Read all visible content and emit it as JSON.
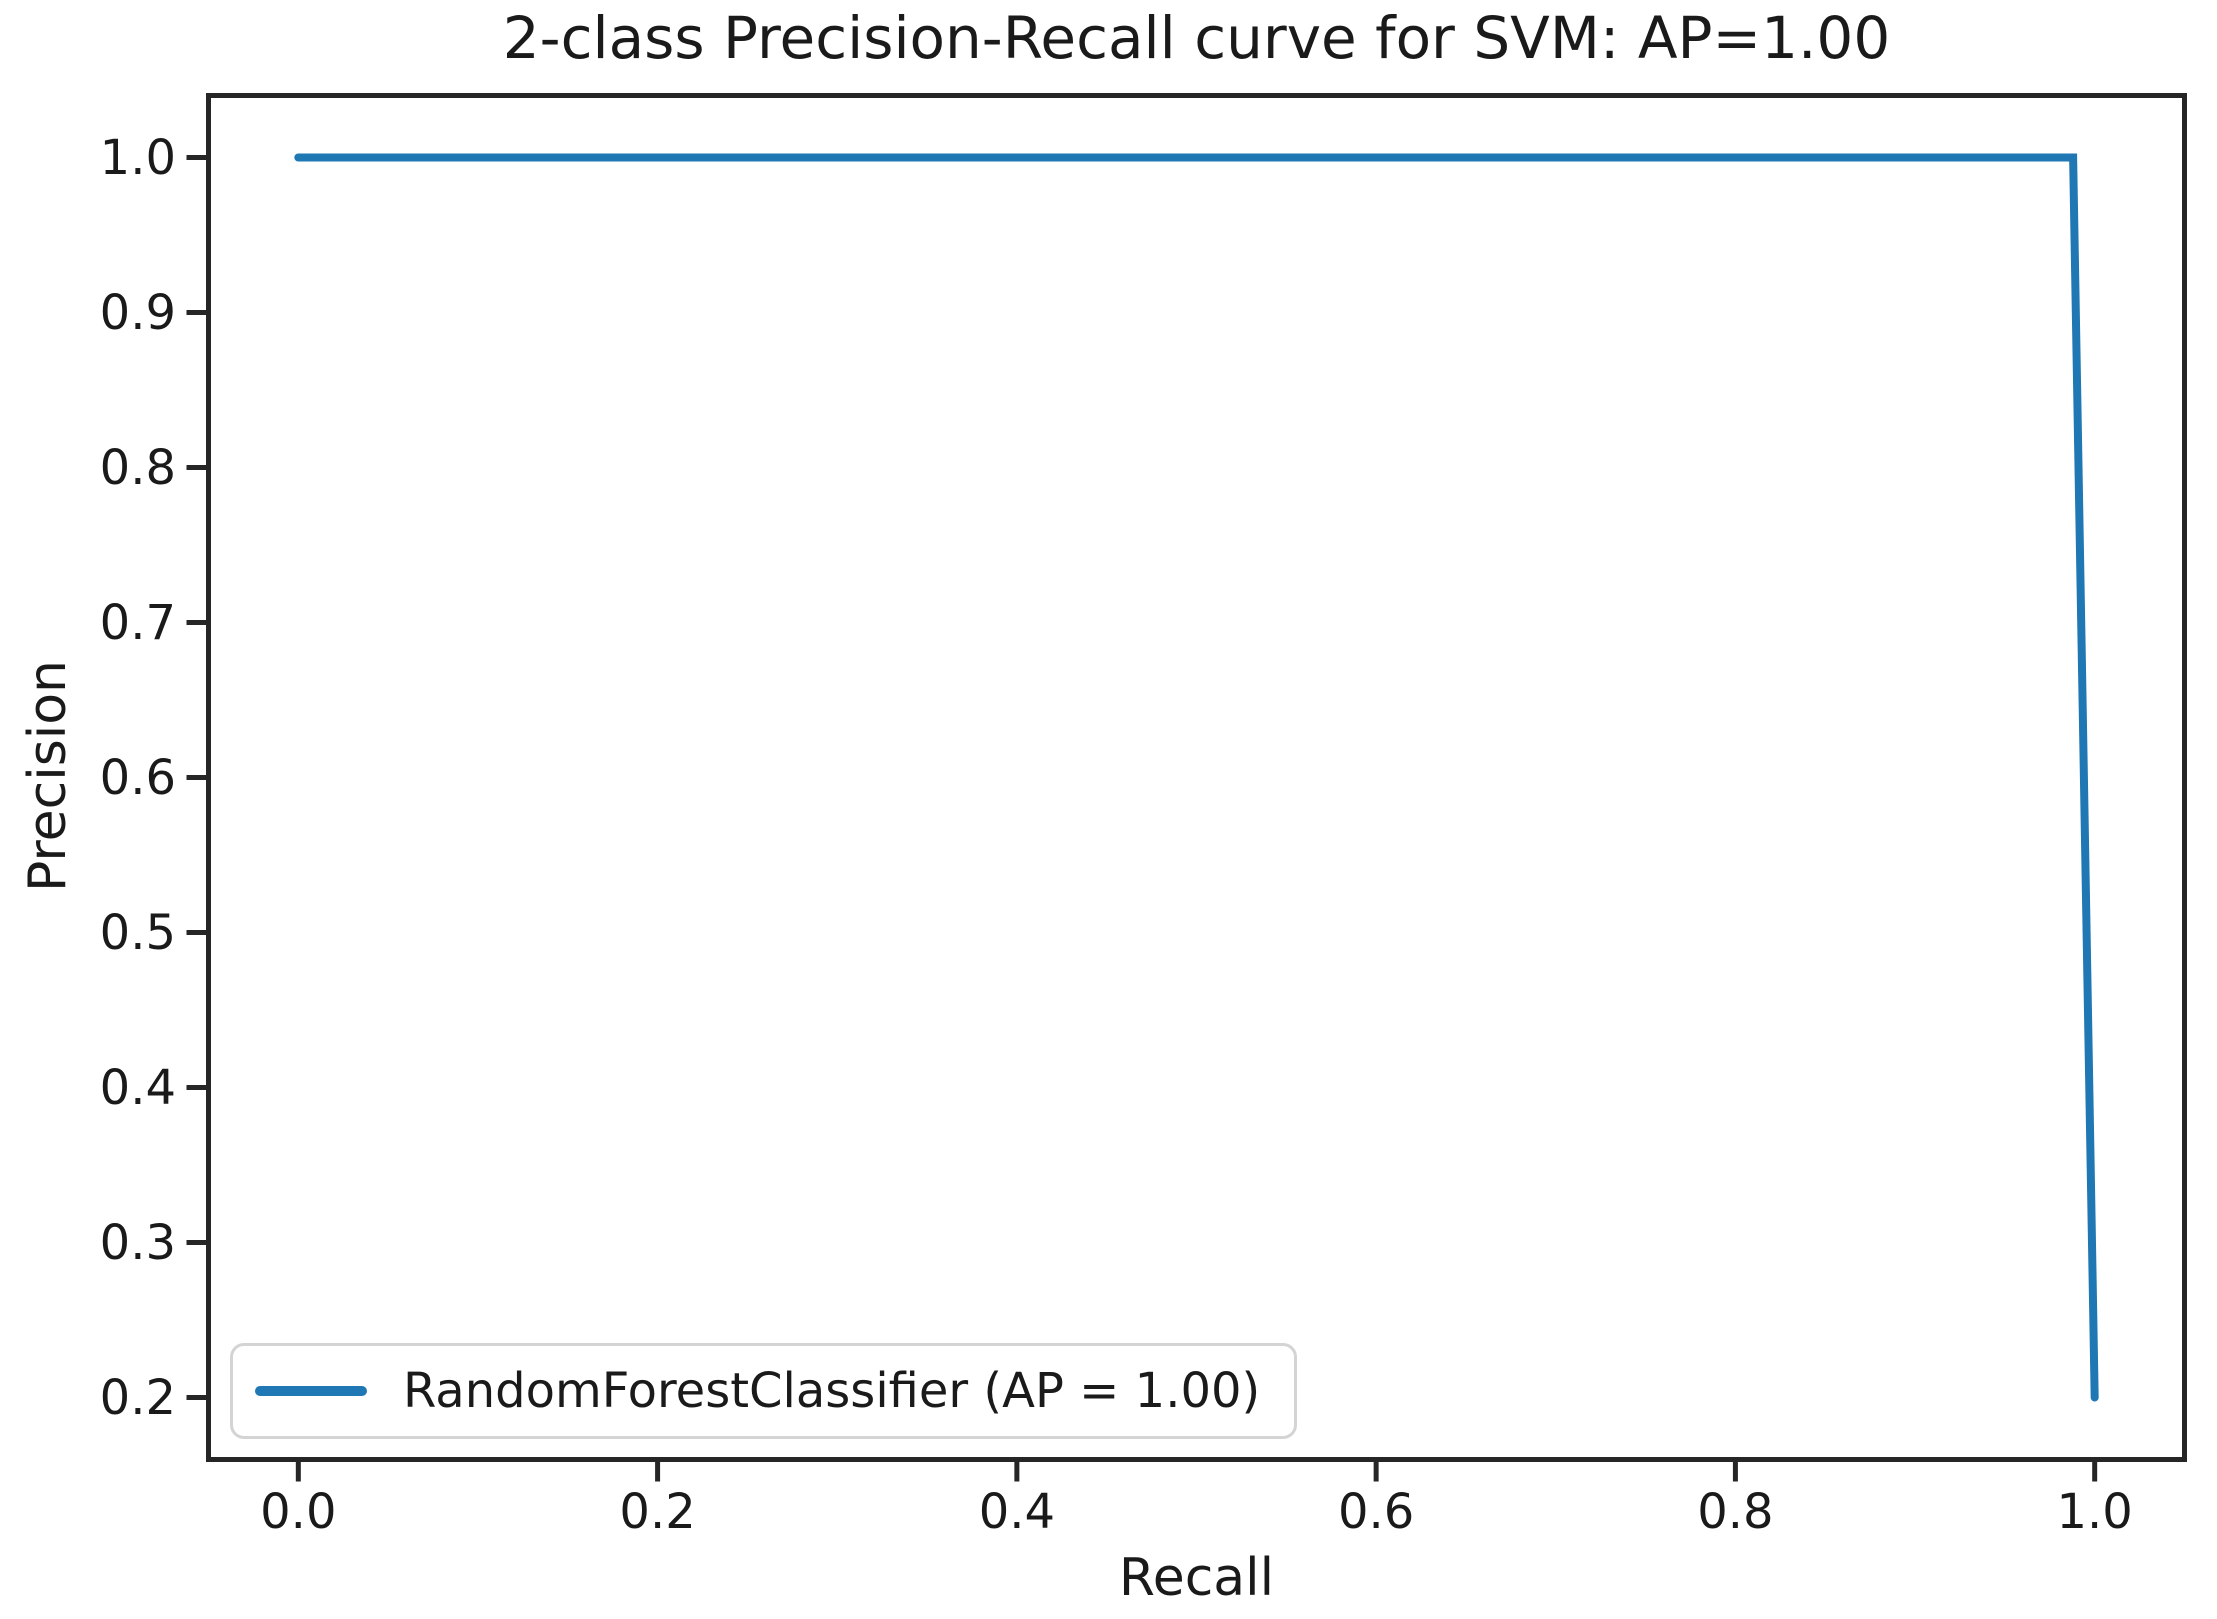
{
  "chart_data": {
    "type": "line",
    "title": "2-class Precision-Recall curve for SVM: AP=1.00",
    "xlabel": "Recall",
    "ylabel": "Precision",
    "xlim": [
      -0.05,
      1.05
    ],
    "ylim": [
      0.16,
      1.04
    ],
    "grid": false,
    "x_ticks": {
      "values": [
        0.0,
        0.2,
        0.4,
        0.6,
        0.8,
        1.0
      ],
      "labels": [
        "0.0",
        "0.2",
        "0.4",
        "0.6",
        "0.8",
        "1.0"
      ]
    },
    "y_ticks": {
      "values": [
        0.2,
        0.3,
        0.4,
        0.5,
        0.6,
        0.7,
        0.8,
        0.9,
        1.0
      ],
      "labels": [
        "0.2",
        "0.3",
        "0.4",
        "0.5",
        "0.6",
        "0.7",
        "0.8",
        "0.9",
        "1.0"
      ]
    },
    "series": [
      {
        "name": "RandomForestClassifier (AP = 1.00)",
        "color": "#1f77b4",
        "points": [
          [
            0.0,
            1.0
          ],
          [
            0.988,
            1.0
          ],
          [
            1.0,
            0.2
          ]
        ]
      }
    ],
    "legend": {
      "position": "lower left",
      "entries": [
        {
          "label": "RandomForestClassifier (AP = 1.00)",
          "color": "#1f77b4"
        }
      ]
    },
    "colors": {
      "line": "#1f77b4",
      "spine": "#262626",
      "text": "#1a1a1a",
      "legend_border": "#d4d4d4",
      "background": "#ffffff"
    }
  }
}
